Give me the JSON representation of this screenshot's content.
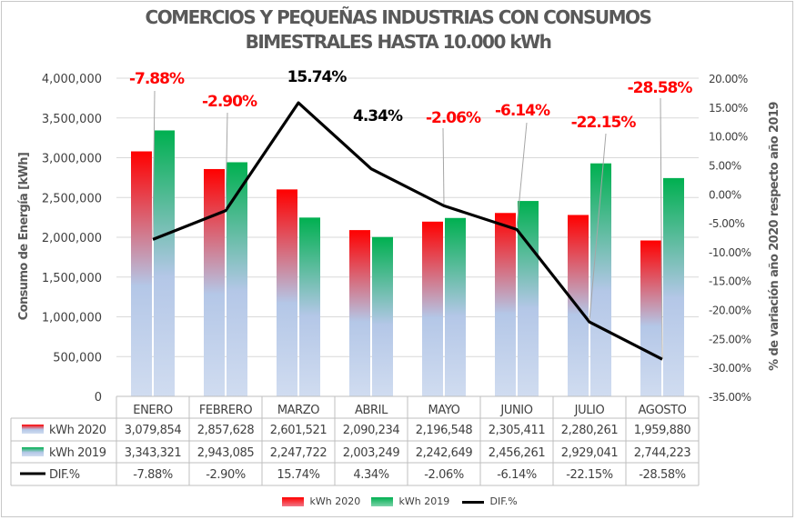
{
  "chart_data": {
    "type": "bar",
    "title_line1": "COMERCIOS Y PEQUEÑAS INDUSTRIAS CON CONSUMOS",
    "title_line2": "BIMESTRALES HASTA 10.000 kWh",
    "ylabel": "Consumo de Energía [kWh]",
    "y2label": "% de variación año 2020 respecto año 2019",
    "ylim": [
      0,
      4000000
    ],
    "y_ticks": [
      0,
      500000,
      1000000,
      1500000,
      2000000,
      2500000,
      3000000,
      3500000,
      4000000
    ],
    "y_tick_labels": [
      "0",
      "500,000",
      "1,000,000",
      "1,500,000",
      "2,000,000",
      "2,500,000",
      "3,000,000",
      "3,500,000",
      "4,000,000"
    ],
    "y2lim": [
      -35,
      20
    ],
    "y2_ticks": [
      20,
      15,
      10,
      5,
      0,
      -5,
      -10,
      -15,
      -20,
      -25,
      -30,
      -35
    ],
    "y2_tick_labels": [
      "20.00%",
      "15.00%",
      "10.00%",
      "5.00%",
      "0.00%",
      "-5.00%",
      "-10.00%",
      "-15.00%",
      "-20.00%",
      "-25.00%",
      "-30.00%",
      "-35.00%"
    ],
    "categories": [
      "ENERO",
      "FEBRERO",
      "MARZO",
      "ABRIL",
      "MAYO",
      "JUNIO",
      "JULIO",
      "AGOSTO"
    ],
    "series": [
      {
        "name": "kWh 2020",
        "type": "bar",
        "color": "#ff0000",
        "values": [
          3079854,
          2857628,
          2601521,
          2090234,
          2196548,
          2305411,
          2280261,
          1959880
        ],
        "labels": [
          "3,079,854",
          "2,857,628",
          "2,601,521",
          "2,090,234",
          "2,196,548",
          "2,305,411",
          "2,280,261",
          "1,959,880"
        ]
      },
      {
        "name": "kWh 2019",
        "type": "bar",
        "color": "#00b050",
        "values": [
          3343321,
          2943085,
          2247722,
          2003249,
          2242649,
          2456261,
          2929041,
          2744223
        ],
        "labels": [
          "3,343,321",
          "2,943,085",
          "2,247,722",
          "2,003,249",
          "2,242,649",
          "2,456,261",
          "2,929,041",
          "2,744,223"
        ]
      },
      {
        "name": "DIF.%",
        "type": "line",
        "axis": "secondary",
        "color": "#000000",
        "values": [
          -7.88,
          -2.9,
          15.74,
          4.34,
          -2.06,
          -6.14,
          -22.15,
          -28.58
        ],
        "labels": [
          "-7.88%",
          "-2.90%",
          "15.74%",
          "4.34%",
          "-2.06%",
          "-6.14%",
          "-22.15%",
          "-28.58%"
        ]
      }
    ],
    "annotation_colors": {
      "negative": "#ff0000",
      "positive": "#000000"
    },
    "bar_fade_color": "#b4c7e7",
    "legend_position": "bottom",
    "has_data_table": true
  }
}
